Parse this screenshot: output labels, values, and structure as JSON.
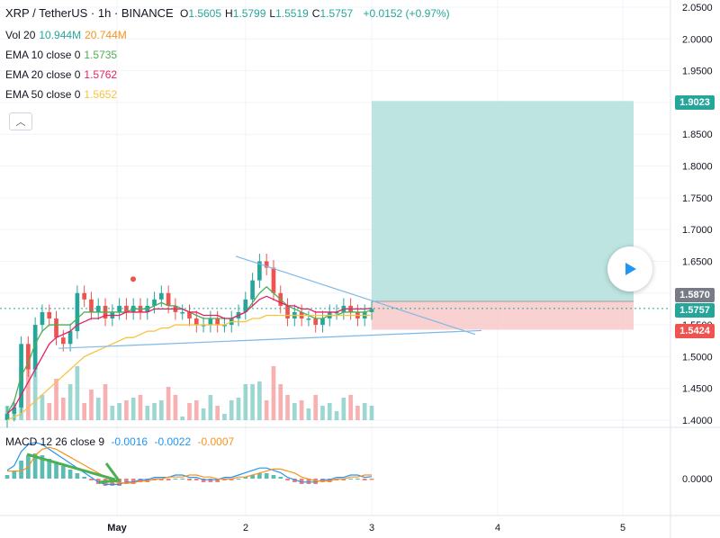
{
  "header": {
    "symbol": "XRP / TetherUS · 1h · BINANCE",
    "ohlc": [
      {
        "k": "O",
        "v": "1.5605"
      },
      {
        "k": "H",
        "v": "1.5799"
      },
      {
        "k": "L",
        "v": "1.5519"
      },
      {
        "k": "C",
        "v": "1.5757"
      }
    ],
    "change": "+0.0152 (+0.97%)"
  },
  "indicators": [
    {
      "label": "Vol 20",
      "v1": "10.944M",
      "v2": "20.744M",
      "c1": "#26a69a",
      "c2": "#f7931a"
    },
    {
      "label": "EMA 10 close 0",
      "v1": "1.5735",
      "c1": "#4caf50"
    },
    {
      "label": "EMA 20 close 0",
      "v1": "1.5762",
      "c1": "#e91e63"
    },
    {
      "label": "EMA 50 close 0",
      "v1": "1.5652",
      "c1": "#f7c340"
    }
  ],
  "macd_legend": {
    "label": "MACD 12 26 close 9",
    "v1": "-0.0016",
    "v2": "-0.0022",
    "v3": "-0.0007"
  },
  "price_tags": {
    "target": "1.9023",
    "entry": "1.5870",
    "last": "1.5757",
    "stop": "1.5424"
  },
  "colors": {
    "up": "#26a69a",
    "down": "#ef5350",
    "target_zone": "#b2dfdb",
    "stop_zone": "#f8c9c8",
    "trend_line": "#7fb8e6",
    "arrow": "#4caf50"
  },
  "chart_data": {
    "type": "candlestick",
    "price_axis_ticks": [
      "2.0500",
      "2.0000",
      "1.9500",
      "1.9000",
      "1.8500",
      "1.8000",
      "1.7500",
      "1.7000",
      "1.6500",
      "1.6000",
      "1.5500",
      "1.5000",
      "1.4500",
      "1.4000"
    ],
    "macd_axis_ticks": [
      "0.0000"
    ],
    "time_axis_ticks": [
      "May",
      "2",
      "3",
      "4",
      "5"
    ],
    "ylim": [
      1.4,
      2.05
    ],
    "close_series": [
      1.41,
      1.42,
      1.52,
      1.48,
      1.55,
      1.57,
      1.56,
      1.53,
      1.52,
      1.54,
      1.6,
      1.59,
      1.57,
      1.58,
      1.56,
      1.57,
      1.58,
      1.57,
      1.58,
      1.57,
      1.58,
      1.59,
      1.6,
      1.58,
      1.57,
      1.57,
      1.56,
      1.55,
      1.55,
      1.56,
      1.55,
      1.55,
      1.56,
      1.57,
      1.59,
      1.62,
      1.65,
      1.64,
      1.6,
      1.58,
      1.56,
      1.57,
      1.56,
      1.56,
      1.55,
      1.56,
      1.57,
      1.57,
      1.58,
      1.57,
      1.56,
      1.57,
      1.575
    ],
    "ema10": [
      1.41,
      1.43,
      1.47,
      1.49,
      1.52,
      1.54,
      1.55,
      1.55,
      1.55,
      1.55,
      1.56,
      1.57,
      1.57,
      1.57,
      1.57,
      1.57,
      1.57,
      1.57,
      1.575,
      1.575,
      1.575,
      1.58,
      1.585,
      1.58,
      1.58,
      1.575,
      1.57,
      1.565,
      1.56,
      1.56,
      1.56,
      1.56,
      1.56,
      1.565,
      1.57,
      1.585,
      1.6,
      1.61,
      1.6,
      1.59,
      1.58,
      1.575,
      1.57,
      1.565,
      1.56,
      1.56,
      1.565,
      1.565,
      1.57,
      1.57,
      1.57,
      1.57,
      1.5735
    ],
    "ema20": [
      1.41,
      1.42,
      1.44,
      1.46,
      1.48,
      1.5,
      1.52,
      1.53,
      1.535,
      1.54,
      1.55,
      1.555,
      1.56,
      1.56,
      1.565,
      1.565,
      1.565,
      1.57,
      1.57,
      1.57,
      1.57,
      1.575,
      1.575,
      1.575,
      1.575,
      1.575,
      1.57,
      1.57,
      1.565,
      1.565,
      1.565,
      1.56,
      1.56,
      1.565,
      1.57,
      1.58,
      1.59,
      1.595,
      1.59,
      1.585,
      1.58,
      1.58,
      1.575,
      1.575,
      1.57,
      1.57,
      1.57,
      1.57,
      1.575,
      1.575,
      1.575,
      1.575,
      1.5762
    ],
    "ema50": [
      1.4,
      1.405,
      1.41,
      1.42,
      1.43,
      1.44,
      1.45,
      1.46,
      1.47,
      1.48,
      1.49,
      1.5,
      1.505,
      1.51,
      1.515,
      1.52,
      1.525,
      1.53,
      1.53,
      1.535,
      1.54,
      1.54,
      1.545,
      1.545,
      1.55,
      1.55,
      1.55,
      1.55,
      1.55,
      1.55,
      1.55,
      1.55,
      1.555,
      1.555,
      1.555,
      1.56,
      1.56,
      1.565,
      1.565,
      1.565,
      1.565,
      1.565,
      1.565,
      1.565,
      1.565,
      1.565,
      1.565,
      1.565,
      1.565,
      1.565,
      1.565,
      1.565,
      1.5652
    ],
    "macd_hist": [
      0.002,
      0.004,
      0.01,
      0.013,
      0.014,
      0.013,
      0.011,
      0.009,
      0.007,
      0.005,
      0.003,
      0.001,
      -0.001,
      -0.003,
      -0.004,
      -0.004,
      -0.004,
      -0.003,
      -0.003,
      -0.002,
      -0.002,
      -0.001,
      -0.001,
      -0.001,
      0.0,
      0.0,
      -0.001,
      -0.001,
      -0.002,
      -0.002,
      -0.002,
      -0.001,
      -0.001,
      0.0,
      0.001,
      0.002,
      0.003,
      0.003,
      0.002,
      0.001,
      -0.001,
      -0.002,
      -0.003,
      -0.003,
      -0.003,
      -0.002,
      -0.002,
      -0.001,
      -0.001,
      0.0,
      0.0,
      -0.001,
      -0.0007
    ]
  }
}
